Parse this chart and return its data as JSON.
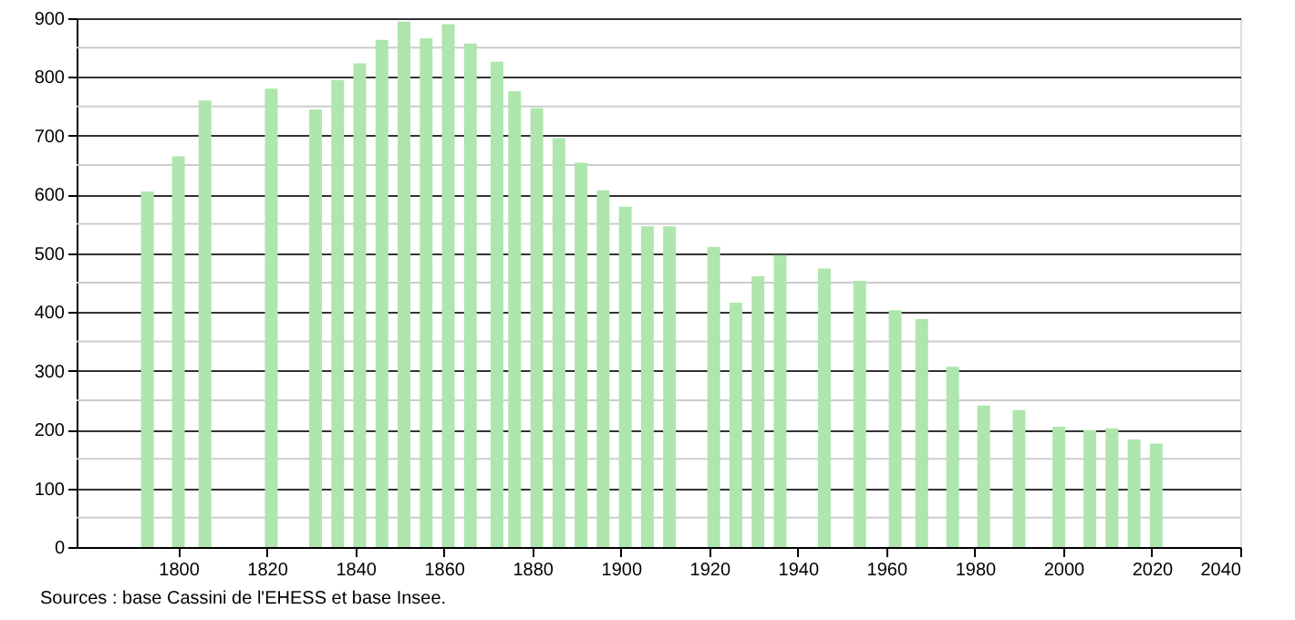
{
  "chart_data": {
    "type": "bar",
    "x": [
      1793,
      1800,
      1806,
      1821,
      1831,
      1836,
      1841,
      1846,
      1851,
      1856,
      1861,
      1866,
      1872,
      1876,
      1881,
      1886,
      1891,
      1896,
      1901,
      1906,
      1911,
      1921,
      1926,
      1931,
      1936,
      1946,
      1954,
      1962,
      1968,
      1975,
      1982,
      1990,
      1999,
      2006,
      2011,
      2016,
      2021
    ],
    "values": [
      605,
      665,
      760,
      780,
      745,
      795,
      823,
      863,
      894,
      866,
      890,
      857,
      826,
      776,
      747,
      696,
      654,
      607,
      579,
      546,
      546,
      511,
      416,
      461,
      497,
      474,
      453,
      403,
      388,
      307,
      241,
      233,
      205,
      199,
      202,
      183,
      176
    ],
    "color": "#aee6ae",
    "xlim": [
      1777,
      2040
    ],
    "xticks": [
      1800,
      1820,
      1840,
      1860,
      1880,
      1900,
      1920,
      1940,
      1960,
      1980,
      2000,
      2020,
      2040
    ],
    "ylim": [
      0,
      900
    ],
    "yticks": [
      0,
      100,
      200,
      300,
      400,
      500,
      600,
      700,
      800,
      900
    ],
    "grid": "y",
    "annotations": [
      "Sources : base Cassini de l'EHESS et base Insee."
    ]
  }
}
